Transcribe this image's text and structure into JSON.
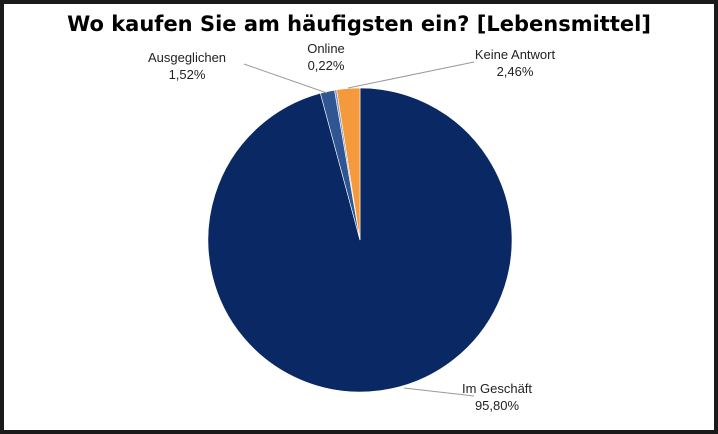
{
  "chart_data": {
    "type": "pie",
    "title": "Wo kaufen Sie am häufigsten ein? [Lebensmittel]",
    "start_angle_deg": 0,
    "direction": "clockwise",
    "slices": [
      {
        "label": "Im Geschäft",
        "value": 95.8,
        "value_label": "95,80%",
        "color": "#0a2863"
      },
      {
        "label": "Ausgeglichen",
        "value": 1.52,
        "value_label": "1,52%",
        "color": "#2f5592"
      },
      {
        "label": "Online",
        "value": 0.22,
        "value_label": "0,22%",
        "color": "#7b94c1"
      },
      {
        "label": "Keine Antwort",
        "value": 2.46,
        "value_label": "2,46%",
        "color": "#f59a3c"
      }
    ]
  }
}
